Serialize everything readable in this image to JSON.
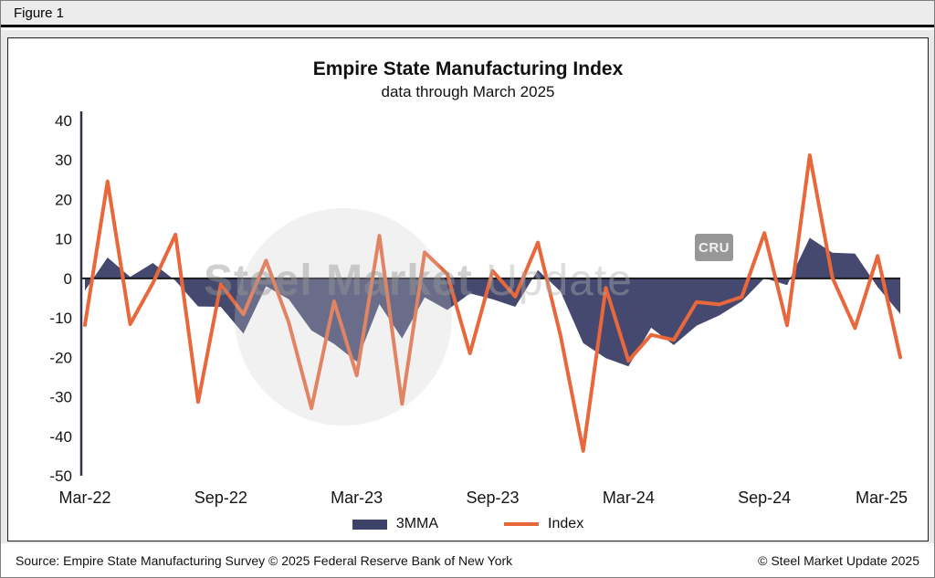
{
  "figure_label": "Figure 1",
  "watermark": {
    "text_bold": "Steel Market",
    "text_light": "Update",
    "cru_label": "CRU"
  },
  "footer": {
    "source": "Source: Empire State Manufacturing Survey © 2025 Federal Reserve Bank of New York",
    "copyright": "© Steel Market Update 2025"
  },
  "chart_data": {
    "type": "line",
    "title": "Empire State Manufacturing Index",
    "subtitle": "data through March 2025",
    "grid": false,
    "legend_position": "bottom",
    "ylim": [
      -50,
      40
    ],
    "y_ticks": [
      40,
      30,
      20,
      10,
      0,
      -10,
      -20,
      -30,
      -40,
      -50
    ],
    "x_tick_labels": [
      "Mar-22",
      "Sep-22",
      "Mar-23",
      "Sep-23",
      "Mar-24",
      "Sep-24",
      "Mar-25"
    ],
    "x": [
      "Mar-22",
      "Apr-22",
      "May-22",
      "Jun-22",
      "Jul-22",
      "Aug-22",
      "Sep-22",
      "Oct-22",
      "Nov-22",
      "Dec-22",
      "Jan-23",
      "Feb-23",
      "Mar-23",
      "Apr-23",
      "May-23",
      "Jun-23",
      "Jul-23",
      "Aug-23",
      "Sep-23",
      "Oct-23",
      "Nov-23",
      "Dec-23",
      "Jan-24",
      "Feb-24",
      "Mar-24",
      "Apr-24",
      "May-24",
      "Jun-24",
      "Jul-24",
      "Aug-24",
      "Sep-24",
      "Oct-24",
      "Nov-24",
      "Dec-24",
      "Jan-25",
      "Feb-25",
      "Mar-25"
    ],
    "series": [
      {
        "name": "3MMA",
        "type": "area",
        "color": "#3d4269",
        "values": [
          -3.1,
          5.3,
          0.4,
          3.9,
          -0.6,
          -7.1,
          -7.2,
          -14.0,
          -2.0,
          -5.3,
          -13.2,
          -16.6,
          -21.1,
          -6.5,
          -15.2,
          -4.8,
          -8.0,
          -3.8,
          -5.3,
          -7.2,
          2.1,
          -3.3,
          -16.4,
          -20.2,
          -22.3,
          -12.5,
          -16.9,
          -12.0,
          -9.4,
          -5.8,
          0.1,
          -1.7,
          10.3,
          6.5,
          6.3,
          -2.2,
          -9.0
        ]
      },
      {
        "name": "Index",
        "type": "line",
        "color": "#e8683c",
        "values": [
          -11.8,
          24.6,
          -11.6,
          -1.2,
          11.1,
          -31.3,
          -1.5,
          -9.1,
          4.5,
          -11.2,
          -32.9,
          -5.8,
          -24.6,
          10.8,
          -31.8,
          6.6,
          1.1,
          -19.0,
          1.9,
          -4.6,
          9.1,
          -14.5,
          -43.7,
          -2.4,
          -20.9,
          -14.3,
          -15.6,
          -6.0,
          -6.6,
          -4.7,
          11.5,
          -11.9,
          31.2,
          0.2,
          -12.6,
          5.7,
          -20.0
        ]
      }
    ]
  }
}
